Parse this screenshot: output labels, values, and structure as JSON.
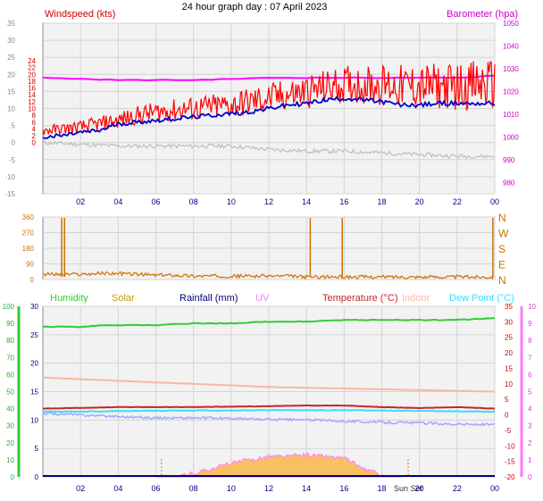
{
  "title": "24 hour graph day : 07 April 2023",
  "colors": {
    "wind_red": "#ff0000",
    "wind_blue": "#0000cc",
    "baro_magenta": "#ff00ff",
    "grey_line": "#bdbdbd",
    "dir_orange": "#d07000",
    "humidity_green": "#33cc33",
    "solar_gold": "#b8a000",
    "rain_navy": "#000080",
    "uv_pink": "#ff77ff",
    "temp_red": "#cc2222",
    "indoor_peach": "#f8b8a0",
    "dew_cyan": "#33e0ff",
    "light_blue": "#a0a8ff",
    "solar_fill": "#f8c060",
    "solar_border": "#ff88ff"
  },
  "chart_data": [
    {
      "type": "line",
      "panel": "wind-barometer",
      "x_ticks": [
        "02",
        "04",
        "06",
        "08",
        "10",
        "12",
        "14",
        "16",
        "18",
        "20",
        "22",
        "00"
      ],
      "left_axis": {
        "label": "Windspeed (kts)",
        "ylim": [
          -15,
          35
        ],
        "inner_ticks": [
          0,
          2,
          4,
          6,
          8,
          10,
          12,
          14,
          16,
          18,
          20,
          22,
          24
        ],
        "outer_ticks": [
          -15,
          -10,
          -5,
          0,
          5,
          10,
          15,
          20,
          25,
          30,
          35
        ]
      },
      "right_axis": {
        "label": "Barometer (hpa)",
        "ylim": [
          975,
          1050
        ],
        "ticks": [
          980,
          990,
          1000,
          1010,
          1020,
          1030,
          1040,
          1050
        ]
      },
      "series": [
        {
          "name": "Windspeed (kts)",
          "color": "#ff0000",
          "x": [
            0,
            1,
            2,
            3,
            4,
            5,
            6,
            7,
            8,
            9,
            10,
            11,
            12,
            13,
            14,
            15,
            16,
            17,
            18,
            19,
            20,
            21,
            22,
            23,
            24
          ],
          "y": [
            3.5,
            4,
            4.5,
            5.5,
            6.5,
            8,
            9,
            9.5,
            10,
            10.5,
            11,
            12,
            13,
            14,
            15,
            16,
            17,
            17,
            17,
            16.5,
            16.5,
            16.5,
            16.5,
            17,
            17
          ]
        },
        {
          "name": "Barometer (hpa)",
          "color": "#ff00ff",
          "x": [
            0,
            2,
            4,
            6,
            8,
            10,
            12,
            14,
            16,
            18,
            20,
            22,
            24
          ],
          "y": [
            1026,
            1025.5,
            1025,
            1025,
            1025,
            1025.5,
            1026,
            1026,
            1026,
            1026,
            1026,
            1026,
            1027
          ]
        },
        {
          "color": "#0000cc",
          "x": [
            0,
            1,
            2,
            3,
            4,
            5,
            6,
            7,
            8,
            9,
            10,
            11,
            12,
            13,
            14,
            15,
            16,
            17,
            18,
            19,
            20,
            21,
            22,
            23,
            24
          ],
          "y": [
            1.5,
            2,
            3,
            3.5,
            5.5,
            6,
            6.5,
            7,
            7.5,
            8,
            8.5,
            9,
            10,
            11,
            11.5,
            12.5,
            13,
            12.5,
            12,
            11,
            11,
            11.5,
            11.5,
            11.5,
            11.5
          ]
        },
        {
          "color": "#bdbdbd",
          "x": [
            0,
            2,
            4,
            6,
            8,
            10,
            12,
            14,
            16,
            18,
            20,
            22,
            24
          ],
          "y": [
            0,
            -0.5,
            -1,
            -1,
            -1,
            -1,
            -2,
            -2.5,
            -2.5,
            -3,
            -3.5,
            -4,
            -4
          ]
        }
      ]
    },
    {
      "type": "scatter",
      "panel": "wind-direction",
      "left_ticks": [
        0,
        90,
        180,
        270,
        360
      ],
      "right_labels": [
        "N",
        "W",
        "S",
        "E",
        "N"
      ],
      "series": [
        {
          "color": "#d07000",
          "x": [
            0,
            1,
            2,
            3,
            4,
            5,
            6,
            7,
            8,
            9,
            10,
            11,
            12,
            13,
            14,
            15,
            16,
            17,
            18,
            19,
            20,
            21,
            22,
            23,
            24
          ],
          "y": [
            30,
            30,
            30,
            35,
            35,
            30,
            25,
            25,
            20,
            20,
            20,
            20,
            20,
            20,
            15,
            15,
            15,
            15,
            15,
            15,
            15,
            15,
            15,
            15,
            15
          ],
          "spikes": [
            1.0,
            1.15,
            14.2,
            15.9,
            23.9
          ]
        }
      ]
    },
    {
      "type": "area",
      "panel": "temperature-humidity",
      "x_ticks": [
        "02",
        "04",
        "06",
        "08",
        "10",
        "12",
        "14",
        "16",
        "18",
        "Sun Set",
        "20",
        "22",
        "00"
      ],
      "legend": [
        "Humidity",
        "Solar",
        "Rainfall (mm)",
        "UV",
        "Temperature (°C)",
        "Indoor",
        "Dew Point (°C)"
      ],
      "axes": {
        "humidity": {
          "ylim": [
            0,
            100
          ],
          "ticks": [
            0,
            10,
            20,
            30,
            40,
            50,
            60,
            70,
            80,
            90,
            100
          ]
        },
        "rainfall": {
          "ylim": [
            0,
            30
          ],
          "ticks": [
            0,
            5,
            10,
            15,
            20,
            25,
            30
          ]
        },
        "temperature": {
          "ylim": [
            -20,
            35
          ],
          "ticks": [
            -20,
            -15,
            -10,
            -5,
            0,
            5,
            10,
            15,
            20,
            25,
            30,
            35
          ]
        },
        "uv": {
          "ylim": [
            0,
            10
          ],
          "ticks": [
            0,
            1,
            2,
            3,
            4,
            5,
            6,
            7,
            8,
            9,
            10
          ]
        }
      },
      "series": [
        {
          "name": "Humidity",
          "color": "#33cc33",
          "x": [
            0,
            2,
            3.5,
            6,
            8,
            10,
            12,
            14,
            16,
            18,
            20,
            22,
            24
          ],
          "y": [
            88,
            88,
            89,
            89,
            90,
            90,
            91,
            91,
            92,
            92,
            92,
            92,
            93
          ]
        },
        {
          "name": "Indoor",
          "color": "#f8b8a0",
          "x": [
            0,
            4,
            8,
            12,
            16,
            20,
            24
          ],
          "y": [
            12,
            11,
            10,
            9,
            8.5,
            8,
            7.5
          ]
        },
        {
          "name": "Temperature (°C)",
          "color": "#cc2222",
          "x": [
            0,
            4,
            8,
            12,
            14,
            16,
            18,
            20,
            22,
            24
          ],
          "y": [
            2,
            2.5,
            2.5,
            2.8,
            3,
            3,
            2.5,
            2.2,
            2.5,
            2
          ]
        },
        {
          "name": "Dew Point (°C)",
          "color": "#33e0ff",
          "x": [
            0,
            4,
            8,
            12,
            16,
            20,
            24
          ],
          "y": [
            1,
            1.2,
            1.4,
            1.5,
            1.5,
            1.3,
            1
          ]
        },
        {
          "color": "#a0a8ff",
          "x": [
            0,
            2,
            4,
            6,
            8,
            10,
            12,
            14,
            16,
            18,
            20,
            22,
            24
          ],
          "y": [
            0.5,
            0,
            -0.5,
            -1,
            -1,
            -1.2,
            -1.5,
            -1.6,
            -2,
            -2.4,
            -2.6,
            -3,
            -3.2
          ]
        },
        {
          "name": "Solar",
          "color": "#f8c060",
          "x": [
            6,
            7,
            8,
            9,
            10,
            11,
            12,
            13,
            14,
            15,
            16,
            17,
            18,
            19
          ],
          "y": [
            0,
            0.5,
            2,
            5,
            8,
            10,
            12,
            12,
            13,
            12,
            11,
            5,
            1,
            0
          ]
        }
      ]
    }
  ]
}
